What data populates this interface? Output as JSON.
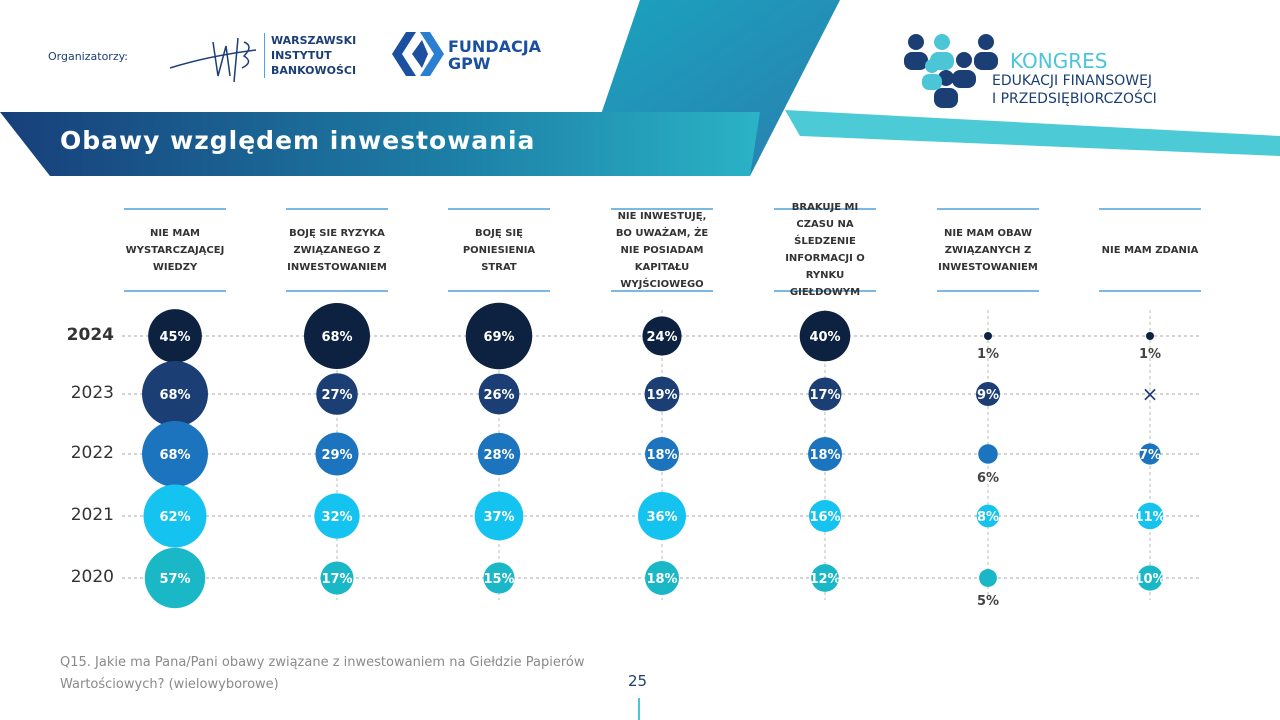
{
  "header": {
    "organizers_label": "Organizatorzy:",
    "wib_text": [
      "WARSZAWSKI",
      "INSTYTUT",
      "BANKOWOŚCI"
    ],
    "wib_logo": "wib",
    "gpw_text": [
      "FUNDACJA",
      "GPW"
    ],
    "kongres_title": "KONGRES",
    "kongres_sub": [
      "EDUKACJI FINANSOWEJ",
      "I PRZEDSIĘBIORCZOŚCI"
    ]
  },
  "title": "Obawy względem inwestowania",
  "footer": {
    "question": "Q15. Jakie ma Pana/Pani obawy związane z inwestowaniem na Giełdzie Papierów Wartościowych? (wielowyborowe)",
    "page": "25"
  },
  "chart_data": {
    "type": "bubble-matrix",
    "categories": [
      "NIE MAM WYSTARCZAJĄCEJ WIEDZY",
      "BOJĘ SIE RYZYKA ZWIĄZANEGO Z INWESTOWANIEM",
      "BOJĘ SIĘ PONIESIENIA STRAT",
      "NIE INWESTUJĘ, BO UWAŻAM, ŻE NIE POSIADAM KAPITAŁU WYJŚCIOWEGO",
      "BRAKUJE MI CZASU NA ŚLEDZENIE INFORMACJI O RYNKU GIEŁDOWYM",
      "NIE MAM OBAW ZWIĄZANYCH Z INWESTOWANIEM",
      "NIE MAM ZDANIA"
    ],
    "series": [
      {
        "name": "2024",
        "color": "#0d2240",
        "values": [
          45,
          68,
          69,
          24,
          40,
          1,
          1
        ]
      },
      {
        "name": "2023",
        "color": "#1b3f75",
        "values": [
          68,
          27,
          26,
          19,
          17,
          9,
          null
        ]
      },
      {
        "name": "2022",
        "color": "#1c74bf",
        "values": [
          68,
          29,
          28,
          18,
          18,
          6,
          7
        ]
      },
      {
        "name": "2021",
        "color": "#14c3ef",
        "values": [
          62,
          32,
          37,
          36,
          16,
          8,
          11
        ]
      },
      {
        "name": "2020",
        "color": "#1ab7c7",
        "values": [
          57,
          17,
          15,
          18,
          12,
          5,
          10
        ]
      }
    ],
    "unit": "%",
    "missing_marker": "×"
  }
}
